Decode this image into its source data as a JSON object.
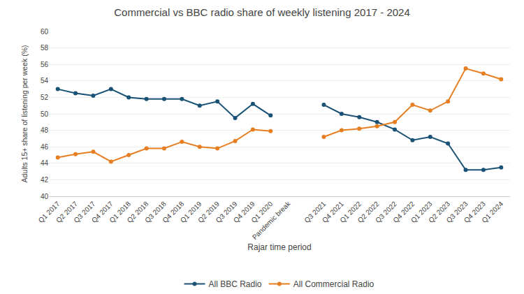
{
  "chart_data": {
    "type": "line",
    "title": "Commercial vs BBC radio share of weekly listening 2017 - 2024",
    "xlabel": "Rajar time period",
    "ylabel": "Adults 15+ share of listening per week (%)",
    "categories": [
      "Q1 2017",
      "Q2 2017",
      "Q3 2017",
      "Q4 2017",
      "Q1 2018",
      "Q2 2018",
      "Q3 2018",
      "Q4 2018",
      "Q1 2019",
      "Q2 2019",
      "Q3 2019",
      "Q4 2019",
      "Q1 2020",
      "Pandemic break",
      null,
      "Q3 2021",
      "Q4 2021",
      "Q1 2022",
      "Q2 2022",
      "Q3 2022",
      "Q4 2022",
      "Q1 2023",
      "Q2 2023",
      "Q3 2023",
      "Q4 2023",
      "Q1 2024"
    ],
    "series": [
      {
        "name": "All BBC Radio",
        "color": "#1a5276",
        "marker": "circle",
        "values": [
          53.0,
          52.5,
          52.2,
          53.0,
          52.0,
          51.8,
          51.8,
          51.8,
          51.0,
          51.5,
          49.5,
          51.2,
          49.8,
          null,
          null,
          51.1,
          50.0,
          49.6,
          49.0,
          48.1,
          46.8,
          47.2,
          46.4,
          43.2,
          43.2,
          43.5
        ]
      },
      {
        "name": "All Commercial Radio",
        "color": "#e67e22",
        "marker": "circle",
        "values": [
          44.7,
          45.1,
          45.4,
          44.2,
          45.0,
          45.8,
          45.8,
          46.6,
          46.0,
          45.8,
          46.7,
          48.1,
          47.9,
          null,
          null,
          47.2,
          48.0,
          48.2,
          48.5,
          49.0,
          51.1,
          50.4,
          51.5,
          55.5,
          54.9,
          54.2
        ]
      }
    ],
    "ylim": [
      40,
      60
    ],
    "yticks": [
      40,
      42,
      44,
      46,
      48,
      50,
      52,
      54,
      56,
      58,
      60
    ],
    "grid": true,
    "legend": "bottom"
  }
}
